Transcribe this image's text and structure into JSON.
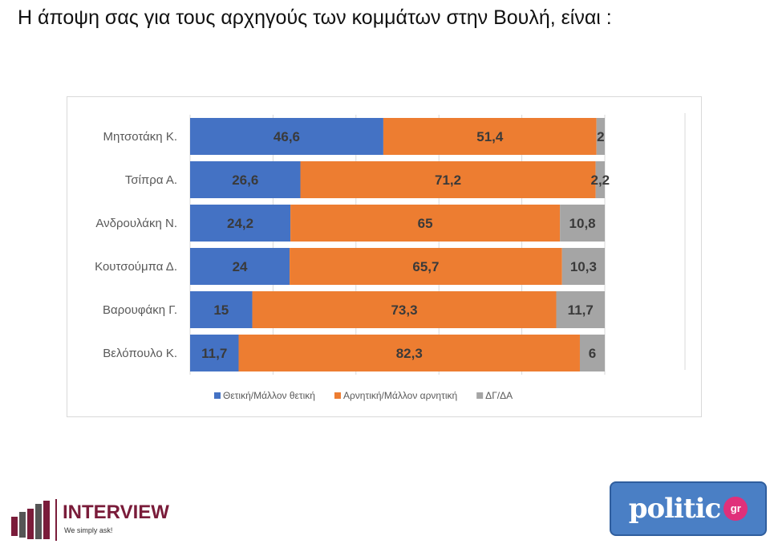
{
  "title": "Η άποψη σας για τους αρχηγούς των κομμάτων στην Βουλή,  είναι :",
  "chart_data": {
    "type": "bar",
    "orientation": "horizontal",
    "stacked": "100%",
    "categories": [
      "Μητσοτάκη Κ.",
      "Τσίπρα Α.",
      "Ανδρουλάκη Ν.",
      "Κουτσούμπα Δ.",
      "Βαρουφάκη Γ.",
      "Βελόπουλο Κ."
    ],
    "series": [
      {
        "name": "Θετική/Μάλλον θετική",
        "color": "#4472c4",
        "values": [
          46.6,
          26.6,
          24.2,
          24,
          15,
          11.7
        ],
        "labels": [
          "46,6",
          "26,6",
          "24,2",
          "24",
          "15",
          "11,7"
        ]
      },
      {
        "name": "Αρνητική/Μάλλον αρνητική",
        "color": "#ed7d31",
        "values": [
          51.4,
          71.2,
          65,
          65.7,
          73.3,
          82.3
        ],
        "labels": [
          "51,4",
          "71,2",
          "65",
          "65,7",
          "73,3",
          "82,3"
        ]
      },
      {
        "name": "ΔΓ/ΔΑ",
        "color": "#a5a5a5",
        "values": [
          2,
          2.2,
          10.8,
          10.3,
          11.7,
          6
        ],
        "labels": [
          "2",
          "2,2",
          "10,8",
          "10,3",
          "11,7",
          "6"
        ]
      }
    ],
    "xlim": [
      0,
      100
    ],
    "grid": true,
    "legend": "bottom"
  },
  "logos": {
    "interview": {
      "name": "INTERVIEW",
      "tagline": "We simply ask!"
    },
    "politic": {
      "name": "politic",
      "suffix": "gr"
    }
  }
}
